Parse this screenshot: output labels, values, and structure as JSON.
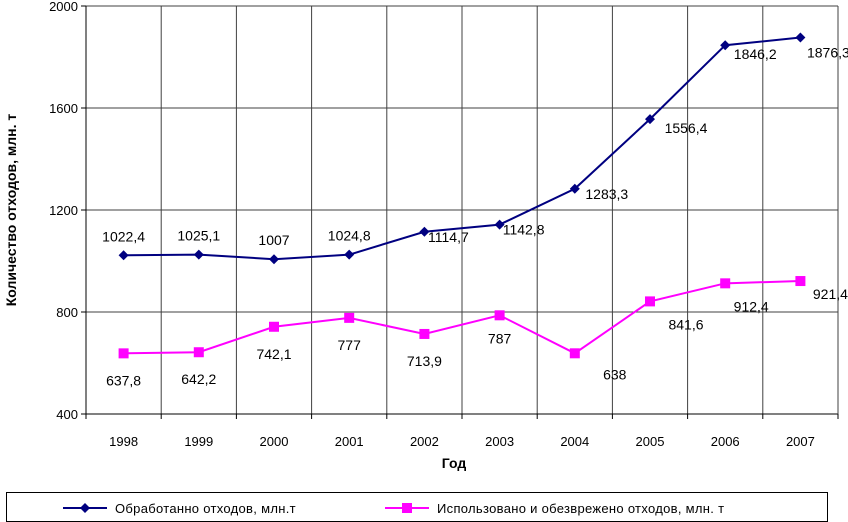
{
  "chart_data": {
    "type": "line",
    "x": [
      "1998",
      "1999",
      "2000",
      "2001",
      "2002",
      "2003",
      "2004",
      "2005",
      "2006",
      "2007"
    ],
    "xlabel": "Год",
    "ylabel": "Количество отходов, млн. т",
    "ylim": [
      400,
      2000
    ],
    "yticks": [
      "400",
      "800",
      "1200",
      "1600",
      "2000"
    ],
    "grid": true,
    "legend_position": "bottom",
    "series": [
      {
        "name": "Обработанно отходов, млн.т",
        "values": [
          1022.4,
          1025.1,
          1007,
          1024.8,
          1114.7,
          1142.8,
          1283.3,
          1556.4,
          1846.2,
          1876.3
        ],
        "labels": [
          "1022,4",
          "1025,1",
          "1007",
          "1024,8",
          "1114,7",
          "1142,8",
          "1283,3",
          "1556,4",
          "1846,2",
          "1876,3"
        ],
        "color": "#000080",
        "marker": "diamond"
      },
      {
        "name": "Использовано и обезврежено отходов, млн. т",
        "values": [
          637.8,
          642.2,
          742.1,
          777,
          713.9,
          787,
          638,
          841.6,
          912.4,
          921.4
        ],
        "labels": [
          "637,8",
          "642,2",
          "742,1",
          "777",
          "713,9",
          "787",
          "638",
          "841,6",
          "912,4",
          "921,4"
        ],
        "color": "#ff00ff",
        "marker": "square"
      }
    ]
  }
}
